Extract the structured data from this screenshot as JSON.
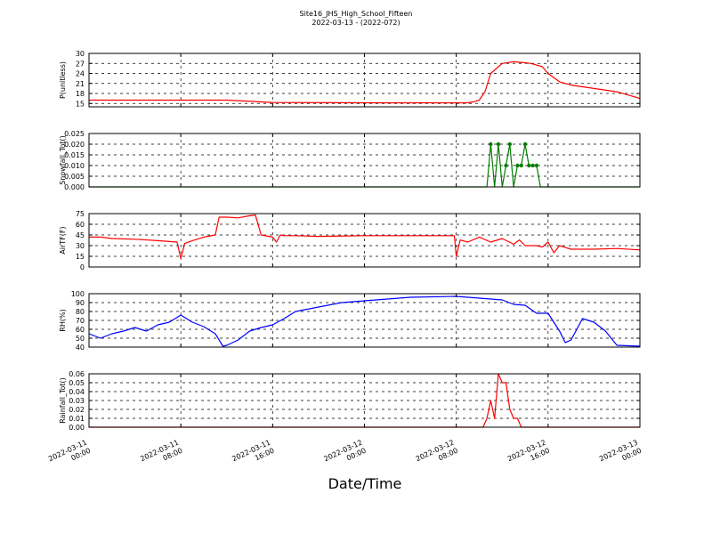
{
  "figure": {
    "title": "Site16_JHS_High_School_Fifteen",
    "subtitle": "2022-03-13 - (2022-072)",
    "xlabel": "Date/Time",
    "x_tick_labels": [
      [
        "2022-03-11",
        "00:00"
      ],
      [
        "2022-03-11",
        "08:00"
      ],
      [
        "2022-03-11",
        "16:00"
      ],
      [
        "2022-03-12",
        "00:00"
      ],
      [
        "2022-03-12",
        "08:00"
      ],
      [
        "2022-03-12",
        "16:00"
      ],
      [
        "2022-03-13",
        "00:00"
      ]
    ]
  },
  "chart_data": [
    {
      "type": "line",
      "ylabel": "P(unitless)",
      "color": "#ff0000",
      "xlim": [
        "2022-03-11 00:00",
        "2022-03-13 00:00"
      ],
      "ylim": [
        14,
        30
      ],
      "yticks": [
        15,
        18,
        21,
        24,
        27,
        30
      ],
      "ytick_labels": [
        "15",
        "18",
        "21",
        "24",
        "27",
        "30"
      ],
      "grid": true,
      "markers": false,
      "x": [
        "2022-03-11 00:00",
        "2022-03-11 08:00",
        "2022-03-11 12:00",
        "2022-03-11 16:00",
        "2022-03-12 00:00",
        "2022-03-12 08:00",
        "2022-03-12 09:00",
        "2022-03-12 09:30",
        "2022-03-12 10:00",
        "2022-03-12 10:30",
        "2022-03-12 11:00",
        "2022-03-12 12:00",
        "2022-03-12 13:00",
        "2022-03-12 14:00",
        "2022-03-12 14:30",
        "2022-03-12 15:00",
        "2022-03-12 15:30",
        "2022-03-12 16:00",
        "2022-03-12 17:00",
        "2022-03-12 18:00",
        "2022-03-12 20:00",
        "2022-03-12 22:00",
        "2022-03-13 00:00"
      ],
      "y": [
        16.0,
        16.0,
        16.0,
        15.3,
        15.2,
        15.2,
        15.2,
        15.5,
        16.0,
        18.5,
        24.0,
        27.0,
        27.5,
        27.2,
        27.0,
        26.5,
        26.0,
        24.0,
        21.5,
        20.5,
        19.5,
        18.5,
        16.5
      ]
    },
    {
      "type": "line",
      "ylabel": "Snowfall_Tot()",
      "color": "#007f00",
      "xlim": [
        "2022-03-11 00:00",
        "2022-03-13 00:00"
      ],
      "ylim": [
        0,
        0.025
      ],
      "yticks": [
        0,
        0.005,
        0.01,
        0.015,
        0.02,
        0.025
      ],
      "ytick_labels": [
        "0.000",
        "0.005",
        "0.010",
        "0.015",
        "0.020",
        "0.025"
      ],
      "grid": true,
      "markers": true,
      "x": [
        "2022-03-11 00:00",
        "2022-03-12 10:40",
        "2022-03-12 11:00",
        "2022-03-12 11:20",
        "2022-03-12 11:40",
        "2022-03-12 12:00",
        "2022-03-12 12:20",
        "2022-03-12 12:40",
        "2022-03-12 13:00",
        "2022-03-12 13:20",
        "2022-03-12 13:40",
        "2022-03-12 14:00",
        "2022-03-12 14:20",
        "2022-03-12 14:40",
        "2022-03-12 15:00",
        "2022-03-12 15:20",
        "2022-03-12 15:40",
        "2022-03-13 00:00"
      ],
      "y": [
        0,
        0,
        0.02,
        0,
        0.02,
        0,
        0.01,
        0.02,
        0,
        0.01,
        0.01,
        0.02,
        0.01,
        0.01,
        0.01,
        0,
        0,
        0
      ]
    },
    {
      "type": "line",
      "ylabel": "AirTF(F)",
      "color": "#ff0000",
      "xlim": [
        "2022-03-11 00:00",
        "2022-03-13 00:00"
      ],
      "ylim": [
        0,
        75
      ],
      "yticks": [
        0,
        15,
        30,
        45,
        60,
        75
      ],
      "ytick_labels": [
        "0",
        "15",
        "30",
        "45",
        "60",
        "75"
      ],
      "grid": true,
      "markers": false,
      "x": [
        "2022-03-11 00:00",
        "2022-03-11 01:00",
        "2022-03-11 02:00",
        "2022-03-11 04:00",
        "2022-03-11 06:00",
        "2022-03-11 07:40",
        "2022-03-11 08:00",
        "2022-03-11 08:20",
        "2022-03-11 09:00",
        "2022-03-11 10:00",
        "2022-03-11 11:00",
        "2022-03-11 11:20",
        "2022-03-11 12:00",
        "2022-03-11 13:00",
        "2022-03-11 14:00",
        "2022-03-11 14:30",
        "2022-03-11 15:00",
        "2022-03-11 16:00",
        "2022-03-11 16:20",
        "2022-03-11 16:40",
        "2022-03-11 17:00",
        "2022-03-11 18:00",
        "2022-03-11 20:00",
        "2022-03-12 00:00",
        "2022-03-12 04:00",
        "2022-03-12 07:50",
        "2022-03-12 08:00",
        "2022-03-12 08:20",
        "2022-03-12 09:00",
        "2022-03-12 10:00",
        "2022-03-12 11:00",
        "2022-03-12 12:00",
        "2022-03-12 13:00",
        "2022-03-12 13:30",
        "2022-03-12 14:00",
        "2022-03-12 15:00",
        "2022-03-12 15:30",
        "2022-03-12 16:00",
        "2022-03-12 16:30",
        "2022-03-12 17:00",
        "2022-03-12 18:00",
        "2022-03-12 19:00",
        "2022-03-12 20:00",
        "2022-03-12 22:00",
        "2022-03-13 00:00"
      ],
      "y": [
        42,
        42,
        40,
        39,
        37,
        35,
        12,
        33,
        37,
        42,
        45,
        70,
        70,
        69,
        72,
        73,
        45,
        42,
        35,
        45,
        44,
        44,
        43,
        44,
        44,
        44,
        15,
        38,
        35,
        42,
        35,
        40,
        32,
        38,
        30,
        30,
        28,
        35,
        20,
        30,
        25,
        25,
        25,
        26,
        24
      ]
    },
    {
      "type": "line",
      "ylabel": "RH(%)",
      "color": "#0000ff",
      "xlim": [
        "2022-03-11 00:00",
        "2022-03-13 00:00"
      ],
      "ylim": [
        40,
        100
      ],
      "yticks": [
        40,
        50,
        60,
        70,
        80,
        90,
        100
      ],
      "ytick_labels": [
        "40",
        "50",
        "60",
        "70",
        "80",
        "90",
        "100"
      ],
      "grid": true,
      "markers": false,
      "x": [
        "2022-03-11 00:00",
        "2022-03-11 01:00",
        "2022-03-11 02:00",
        "2022-03-11 03:00",
        "2022-03-11 04:00",
        "2022-03-11 05:00",
        "2022-03-11 06:00",
        "2022-03-11 07:00",
        "2022-03-11 08:00",
        "2022-03-11 09:00",
        "2022-03-11 10:00",
        "2022-03-11 11:00",
        "2022-03-11 11:40",
        "2022-03-11 12:00",
        "2022-03-11 13:00",
        "2022-03-11 14:00",
        "2022-03-11 15:00",
        "2022-03-11 16:00",
        "2022-03-11 17:00",
        "2022-03-11 18:00",
        "2022-03-11 20:00",
        "2022-03-11 22:00",
        "2022-03-12 00:00",
        "2022-03-12 04:00",
        "2022-03-12 08:00",
        "2022-03-12 10:00",
        "2022-03-12 12:00",
        "2022-03-12 13:00",
        "2022-03-12 14:00",
        "2022-03-12 15:00",
        "2022-03-12 16:00",
        "2022-03-12 17:00",
        "2022-03-12 17:30",
        "2022-03-12 18:00",
        "2022-03-12 19:00",
        "2022-03-12 20:00",
        "2022-03-12 21:00",
        "2022-03-12 22:00",
        "2022-03-13 00:00"
      ],
      "y": [
        55,
        50,
        55,
        58,
        62,
        58,
        65,
        68,
        76,
        68,
        63,
        55,
        41,
        42,
        48,
        58,
        62,
        65,
        72,
        80,
        85,
        90,
        92,
        96,
        97,
        95,
        93,
        88,
        87,
        78,
        78,
        58,
        45,
        48,
        72,
        68,
        58,
        42,
        41
      ]
    },
    {
      "type": "line",
      "ylabel": "Rainfall_Tot()",
      "color": "#ff0000",
      "xlim": [
        "2022-03-11 00:00",
        "2022-03-13 00:00"
      ],
      "ylim": [
        0,
        0.06
      ],
      "yticks": [
        0,
        0.01,
        0.02,
        0.03,
        0.04,
        0.05,
        0.06
      ],
      "ytick_labels": [
        "0.00",
        "0.01",
        "0.02",
        "0.03",
        "0.04",
        "0.05",
        "0.06"
      ],
      "grid": true,
      "markers": false,
      "x": [
        "2022-03-11 00:00",
        "2022-03-12 10:20",
        "2022-03-12 10:40",
        "2022-03-12 11:00",
        "2022-03-12 11:20",
        "2022-03-12 11:40",
        "2022-03-12 12:00",
        "2022-03-12 12:20",
        "2022-03-12 12:40",
        "2022-03-12 13:00",
        "2022-03-12 13:20",
        "2022-03-12 13:40",
        "2022-03-13 00:00"
      ],
      "y": [
        0,
        0,
        0.01,
        0.03,
        0.01,
        0.06,
        0.05,
        0.05,
        0.02,
        0.01,
        0.01,
        0,
        0
      ]
    }
  ]
}
